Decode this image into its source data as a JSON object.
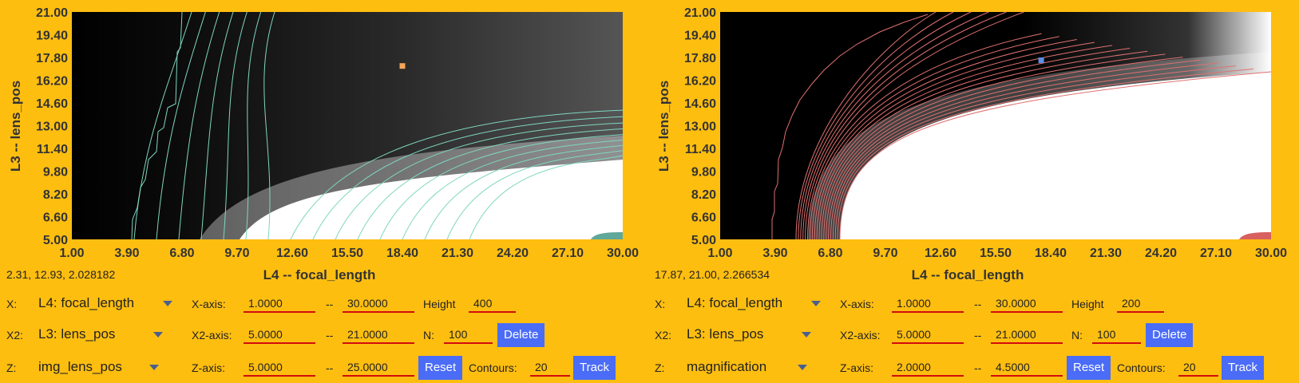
{
  "panels": [
    {
      "x_ticks": [
        "1.00",
        "3.90",
        "6.80",
        "9.70",
        "12.60",
        "15.50",
        "18.40",
        "21.30",
        "24.20",
        "27.10",
        "30.00"
      ],
      "y_ticks": [
        "21.00",
        "19.40",
        "17.80",
        "16.20",
        "14.60",
        "13.00",
        "11.40",
        "9.80",
        "8.20",
        "6.60",
        "5.00"
      ],
      "xlabel": "L4 -- focal_length",
      "ylabel": "L3 -- lens_pos",
      "readout": "2.31, 12.93, 2.028182",
      "contour_color": "#7fd6c0",
      "marker_color": "#f2a65a",
      "marker": {
        "x": 18.4,
        "y": 17.2
      },
      "controls": {
        "x_label": "X:",
        "x_value": "L4: focal_length",
        "x2_label": "X2:",
        "x2_value": "L3: lens_pos",
        "z_label": "Z:",
        "z_value": "img_lens_pos",
        "xaxis_label": "X-axis:",
        "xaxis_min": "1.0000",
        "xaxis_max": "30.0000",
        "x2axis_label": "X2-axis:",
        "x2axis_min": "5.0000",
        "x2axis_max": "21.0000",
        "zaxis_label": "Z-axis:",
        "zaxis_min": "5.0000",
        "zaxis_max": "25.0000",
        "dash": "--",
        "height_label": "Height",
        "height_value": "400",
        "n_label": "N:",
        "n_value": "100",
        "contours_label": "Contours:",
        "contours_value": "20",
        "delete_label": "Delete",
        "reset_label": "Reset",
        "track_label": "Track"
      }
    },
    {
      "x_ticks": [
        "1.00",
        "3.90",
        "6.80",
        "9.70",
        "12.60",
        "15.50",
        "18.40",
        "21.30",
        "24.20",
        "27.10",
        "30.00"
      ],
      "y_ticks": [
        "21.00",
        "19.40",
        "17.80",
        "16.20",
        "14.60",
        "13.00",
        "11.40",
        "9.80",
        "8.20",
        "6.60",
        "5.00"
      ],
      "xlabel": "L4 -- focal_length",
      "ylabel": "L3 -- lens_pos",
      "readout": "17.87, 21.00, 2.266534",
      "contour_color": "#e07070",
      "marker_color": "#5b8fe8",
      "marker": {
        "x": 17.9,
        "y": 17.6
      },
      "controls": {
        "x_label": "X:",
        "x_value": "L4: focal_length",
        "x2_label": "X2:",
        "x2_value": "L3: lens_pos",
        "z_label": "Z:",
        "z_value": "magnification",
        "xaxis_label": "X-axis:",
        "xaxis_min": "1.0000",
        "xaxis_max": "30.0000",
        "x2axis_label": "X2-axis:",
        "x2axis_min": "5.0000",
        "x2axis_max": "21.0000",
        "zaxis_label": "Z-axis:",
        "zaxis_min": "2.0000",
        "zaxis_max": "4.5000",
        "dash": "--",
        "height_label": "Height",
        "height_value": "200",
        "n_label": "N:",
        "n_value": "100",
        "contours_label": "Contours:",
        "contours_value": "20",
        "delete_label": "Delete",
        "reset_label": "Reset",
        "track_label": "Track"
      }
    }
  ]
}
